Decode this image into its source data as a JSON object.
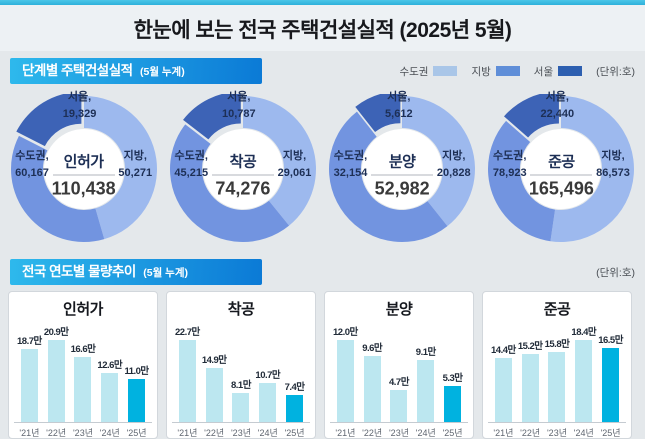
{
  "title": "한눈에 보는 전국 주택건설실적 (2025년 5월)",
  "section_stage": {
    "header": "단계별 주택건설실적",
    "header_note": "(5월 누계)",
    "unit": "(단위:호)",
    "legend": [
      {
        "key": "capital",
        "label": "수도권",
        "color": "#a9c6e8"
      },
      {
        "key": "province",
        "label": "지방",
        "color": "#5f8ed8"
      },
      {
        "key": "seoul",
        "label": "서울",
        "color": "#2d5fb0"
      }
    ]
  },
  "section_trend": {
    "header": "전국 연도별 물량추이",
    "header_note": "(5월 누계)",
    "unit": "(단위:호)"
  },
  "colors": {
    "donut_province": "#9db9ee",
    "donut_capital": "#7294e0",
    "donut_seoul": "#3d63b6",
    "bar_normal": "#bce7f0",
    "bar_highlight": "#00b2e0"
  },
  "chart_data": [
    {
      "type": "donut",
      "title": "인허가",
      "total": 110438,
      "slices": [
        {
          "label": "수도권",
          "value": 60167
        },
        {
          "label": "지방",
          "value": 50271
        },
        {
          "label": "서울",
          "value": 19329
        }
      ]
    },
    {
      "type": "donut",
      "title": "착공",
      "total": 74276,
      "slices": [
        {
          "label": "수도권",
          "value": 45215
        },
        {
          "label": "지방",
          "value": 29061
        },
        {
          "label": "서울",
          "value": 10787
        }
      ]
    },
    {
      "type": "donut",
      "title": "분양",
      "total": 52982,
      "slices": [
        {
          "label": "수도권",
          "value": 32154
        },
        {
          "label": "지방",
          "value": 20828
        },
        {
          "label": "서울",
          "value": 5612
        }
      ]
    },
    {
      "type": "donut",
      "title": "준공",
      "total": 165496,
      "slices": [
        {
          "label": "수도권",
          "value": 78923
        },
        {
          "label": "지방",
          "value": 86573
        },
        {
          "label": "서울",
          "value": 22440
        }
      ]
    },
    {
      "type": "bar",
      "title": "인허가",
      "value_suffix": "만",
      "highlight_index": 4,
      "categories": [
        "'21년",
        "'22년",
        "'23년",
        "'24년",
        "'25년"
      ],
      "values": [
        18.7,
        20.9,
        16.6,
        12.6,
        11.0
      ]
    },
    {
      "type": "bar",
      "title": "착공",
      "value_suffix": "만",
      "highlight_index": 4,
      "categories": [
        "'21년",
        "'22년",
        "'23년",
        "'24년",
        "'25년"
      ],
      "values": [
        22.7,
        14.9,
        8.1,
        10.7,
        7.4
      ]
    },
    {
      "type": "bar",
      "title": "분양",
      "value_suffix": "만",
      "highlight_index": 4,
      "categories": [
        "'21년",
        "'22년",
        "'23년",
        "'24년",
        "'25년"
      ],
      "values": [
        12.0,
        9.6,
        4.7,
        9.1,
        5.3
      ]
    },
    {
      "type": "bar",
      "title": "준공",
      "value_suffix": "만",
      "highlight_index": 4,
      "categories": [
        "'21년",
        "'22년",
        "'23년",
        "'24년",
        "'25년"
      ],
      "values": [
        14.4,
        15.2,
        15.8,
        18.4,
        16.5
      ]
    }
  ]
}
